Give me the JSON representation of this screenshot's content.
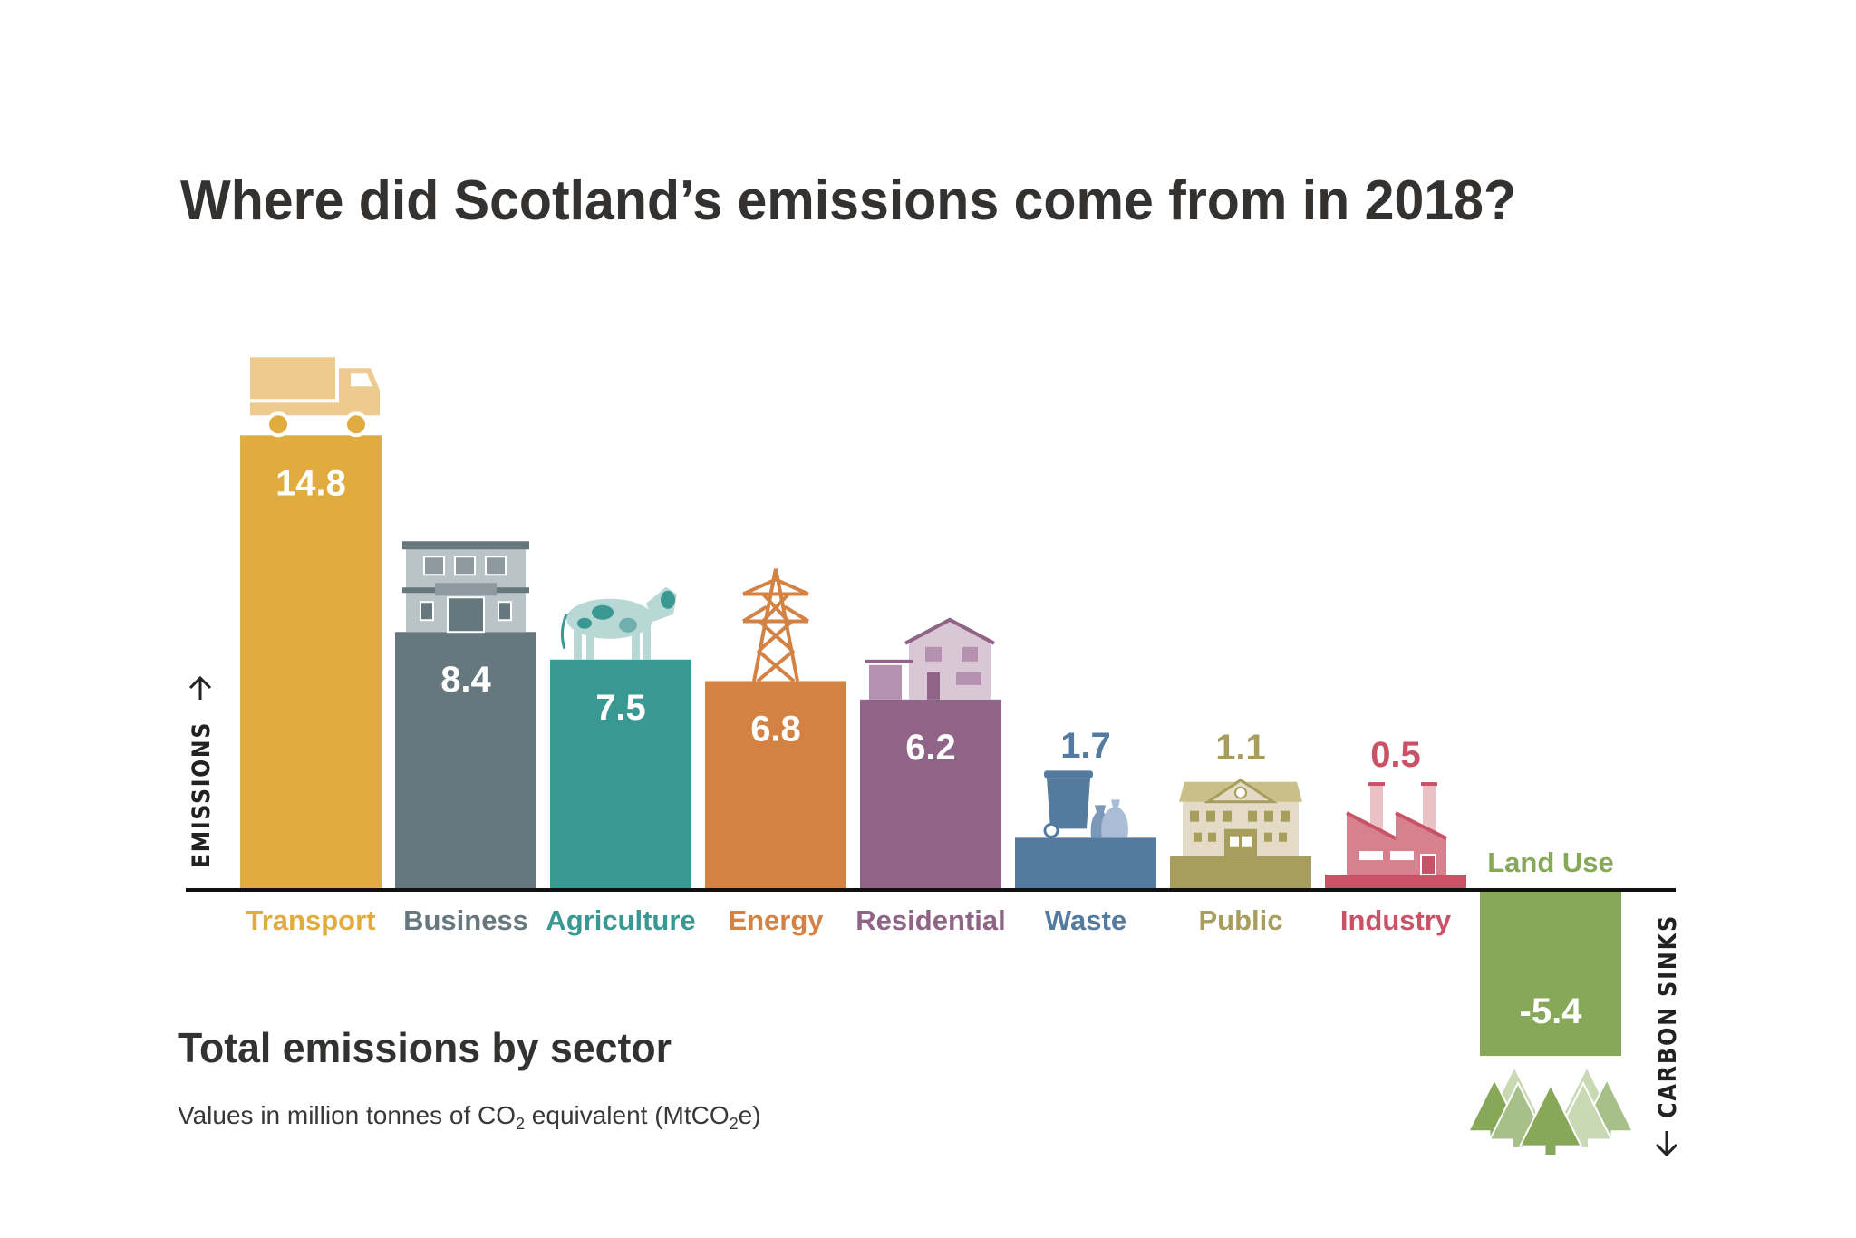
{
  "title": "Where did Scotland’s emissions come from in 2018?",
  "subtitle_heading": "Total emissions by sector",
  "subtitle_note": {
    "pre": "Values in million tonnes of CO",
    "sub": "2",
    "mid": " equivalent (MtCO",
    "sub2": "2",
    "post": "e)"
  },
  "axis_labels": {
    "up": "EMISSIONS",
    "down": "CARBON SINKS"
  },
  "chart_data": {
    "type": "bar",
    "title": "Where did Scotland’s emissions come from in 2018?",
    "xlabel": "",
    "ylabel": "",
    "unit": "MtCO2e",
    "grid": false,
    "legend": "none",
    "categories": [
      "Transport",
      "Business",
      "Agriculture",
      "Energy",
      "Residential",
      "Waste",
      "Public",
      "Industry",
      "Land Use"
    ],
    "values": [
      14.8,
      8.4,
      7.5,
      6.8,
      6.2,
      1.7,
      1.1,
      0.5,
      -5.4
    ],
    "value_labels": [
      "14.8",
      "8.4",
      "7.5",
      "6.8",
      "6.2",
      "1.7",
      "1.1",
      "0.5",
      "-5.4"
    ],
    "colors": [
      "#E0AC3E",
      "#66777D",
      "#3A9893",
      "#D48244",
      "#8F6487",
      "#557AA0",
      "#A79D5C",
      "#C95266",
      "#87A858"
    ],
    "icons": [
      "truck-icon",
      "office-building-icon",
      "cow-icon",
      "electricity-pylon-icon",
      "house-icon",
      "wheelie-bin-icon",
      "public-building-icon",
      "factory-icon",
      "pine-trees-icon"
    ]
  }
}
